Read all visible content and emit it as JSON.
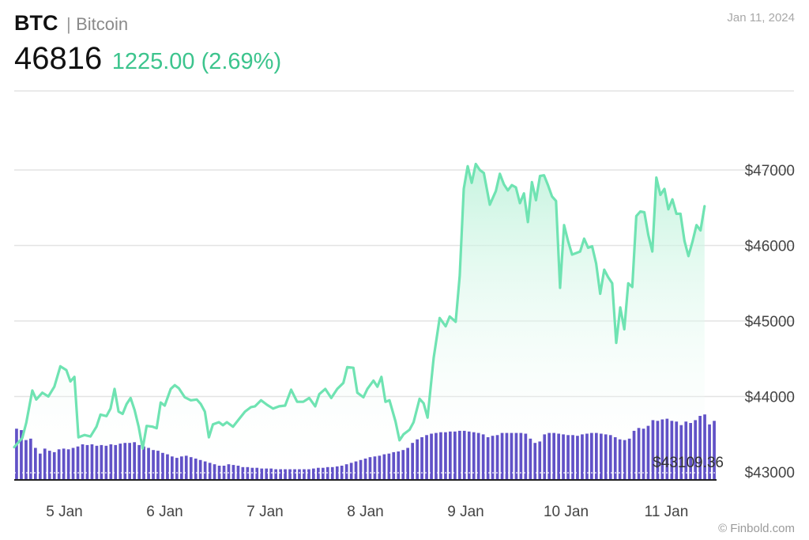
{
  "header": {
    "ticker": "BTC",
    "separator": "|",
    "name": "Bitcoin",
    "price": "46816",
    "change": "1225.00 (2.69%)",
    "date": "Jan 11, 2024"
  },
  "credit": "© Finbold.com",
  "colors": {
    "line": "#6fe3b2",
    "area_top": "#bdf2da",
    "volume": "#6152c7",
    "change": "#3cc48d",
    "grid": "#e3e3e3"
  },
  "chart_data": {
    "type": "line",
    "title": "",
    "xlabel": "",
    "ylabel": "",
    "x_tick_labels": [
      "5 Jan",
      "6 Jan",
      "7 Jan",
      "8 Jan",
      "9 Jan",
      "10 Jan",
      "11 Jan"
    ],
    "x_tick_positions": [
      0.5,
      1.5,
      2.5,
      3.5,
      4.5,
      5.5,
      6.5
    ],
    "x_range": [
      0,
      7
    ],
    "y_tick_labels": [
      "$43000",
      "$44000",
      "$45000",
      "$46000",
      "$47000"
    ],
    "y_tick_values": [
      43000,
      44000,
      45000,
      46000,
      47000
    ],
    "ylim": [
      42900,
      48000
    ],
    "min_label": "$43109.36",
    "min_value": 43109.36,
    "grid": true,
    "price_series": {
      "name": "",
      "points": [
        [
          0.0,
          43330
        ],
        [
          0.08,
          43450
        ],
        [
          0.12,
          43650
        ],
        [
          0.18,
          44080
        ],
        [
          0.22,
          43960
        ],
        [
          0.28,
          44050
        ],
        [
          0.34,
          44000
        ],
        [
          0.4,
          44130
        ],
        [
          0.46,
          44400
        ],
        [
          0.52,
          44350
        ],
        [
          0.56,
          44200
        ],
        [
          0.6,
          44260
        ],
        [
          0.64,
          43460
        ],
        [
          0.7,
          43490
        ],
        [
          0.76,
          43470
        ],
        [
          0.82,
          43600
        ],
        [
          0.86,
          43760
        ],
        [
          0.92,
          43740
        ],
        [
          0.96,
          43840
        ],
        [
          1.0,
          44100
        ],
        [
          1.04,
          43800
        ],
        [
          1.08,
          43770
        ],
        [
          1.12,
          43900
        ],
        [
          1.16,
          43980
        ],
        [
          1.2,
          43820
        ],
        [
          1.24,
          43600
        ],
        [
          1.28,
          43310
        ],
        [
          1.32,
          43610
        ],
        [
          1.38,
          43600
        ],
        [
          1.42,
          43580
        ],
        [
          1.46,
          43920
        ],
        [
          1.5,
          43880
        ],
        [
          1.56,
          44100
        ],
        [
          1.6,
          44150
        ],
        [
          1.64,
          44110
        ],
        [
          1.7,
          43990
        ],
        [
          1.76,
          43950
        ],
        [
          1.82,
          43960
        ],
        [
          1.86,
          43900
        ],
        [
          1.9,
          43800
        ],
        [
          1.94,
          43460
        ],
        [
          1.98,
          43630
        ],
        [
          2.04,
          43660
        ],
        [
          2.08,
          43620
        ],
        [
          2.12,
          43660
        ],
        [
          2.18,
          43600
        ],
        [
          2.24,
          43700
        ],
        [
          2.3,
          43800
        ],
        [
          2.36,
          43860
        ],
        [
          2.4,
          43870
        ],
        [
          2.46,
          43950
        ],
        [
          2.52,
          43890
        ],
        [
          2.58,
          43840
        ],
        [
          2.64,
          43870
        ],
        [
          2.7,
          43880
        ],
        [
          2.76,
          44090
        ],
        [
          2.82,
          43930
        ],
        [
          2.88,
          43930
        ],
        [
          2.94,
          43980
        ],
        [
          3.0,
          43870
        ],
        [
          3.04,
          44030
        ],
        [
          3.1,
          44100
        ],
        [
          3.16,
          43980
        ],
        [
          3.22,
          44100
        ],
        [
          3.28,
          44180
        ],
        [
          3.32,
          44390
        ],
        [
          3.38,
          44380
        ],
        [
          3.42,
          44050
        ],
        [
          3.48,
          43990
        ],
        [
          3.52,
          44100
        ],
        [
          3.58,
          44210
        ],
        [
          3.62,
          44130
        ],
        [
          3.66,
          44260
        ],
        [
          3.7,
          43930
        ],
        [
          3.74,
          43950
        ],
        [
          3.8,
          43670
        ],
        [
          3.84,
          43420
        ],
        [
          3.88,
          43500
        ],
        [
          3.94,
          43560
        ],
        [
          3.98,
          43660
        ],
        [
          4.04,
          43970
        ],
        [
          4.08,
          43910
        ],
        [
          4.12,
          43720
        ],
        [
          4.18,
          44510
        ],
        [
          4.24,
          45040
        ],
        [
          4.3,
          44930
        ],
        [
          4.34,
          45060
        ],
        [
          4.4,
          44990
        ],
        [
          4.44,
          45600
        ],
        [
          4.48,
          46750
        ],
        [
          4.52,
          47050
        ],
        [
          4.56,
          46830
        ],
        [
          4.6,
          47080
        ],
        [
          4.64,
          47000
        ],
        [
          4.68,
          46960
        ],
        [
          4.74,
          46540
        ],
        [
          4.8,
          46720
        ],
        [
          4.84,
          46950
        ],
        [
          4.88,
          46810
        ],
        [
          4.92,
          46730
        ],
        [
          4.96,
          46800
        ],
        [
          5.0,
          46770
        ],
        [
          5.04,
          46560
        ],
        [
          5.08,
          46690
        ],
        [
          5.12,
          46310
        ],
        [
          5.16,
          46840
        ],
        [
          5.2,
          46600
        ],
        [
          5.24,
          46920
        ],
        [
          5.28,
          46930
        ],
        [
          5.32,
          46800
        ],
        [
          5.36,
          46650
        ],
        [
          5.4,
          46590
        ],
        [
          5.44,
          45440
        ],
        [
          5.48,
          46270
        ],
        [
          5.52,
          46060
        ],
        [
          5.56,
          45880
        ],
        [
          5.6,
          45900
        ],
        [
          5.64,
          45920
        ],
        [
          5.68,
          46090
        ],
        [
          5.72,
          45970
        ],
        [
          5.76,
          45990
        ],
        [
          5.8,
          45760
        ],
        [
          5.84,
          45360
        ],
        [
          5.88,
          45680
        ],
        [
          5.92,
          45580
        ],
        [
          5.96,
          45500
        ],
        [
          6.0,
          44710
        ],
        [
          6.04,
          45180
        ],
        [
          6.08,
          44890
        ],
        [
          6.12,
          45500
        ],
        [
          6.16,
          45450
        ],
        [
          6.2,
          46390
        ],
        [
          6.24,
          46450
        ],
        [
          6.28,
          46440
        ],
        [
          6.32,
          46140
        ],
        [
          6.36,
          45920
        ],
        [
          6.4,
          46900
        ],
        [
          6.44,
          46670
        ],
        [
          6.48,
          46750
        ],
        [
          6.52,
          46480
        ],
        [
          6.56,
          46610
        ],
        [
          6.6,
          46420
        ],
        [
          6.64,
          46420
        ],
        [
          6.68,
          46060
        ],
        [
          6.72,
          45860
        ],
        [
          6.76,
          46050
        ],
        [
          6.8,
          46270
        ],
        [
          6.84,
          46200
        ],
        [
          6.88,
          46520
        ]
      ]
    },
    "volume_series": {
      "name": "",
      "values": [
        0.72,
        0.7,
        0.56,
        0.58,
        0.45,
        0.37,
        0.44,
        0.41,
        0.39,
        0.43,
        0.44,
        0.43,
        0.45,
        0.47,
        0.5,
        0.49,
        0.5,
        0.48,
        0.49,
        0.48,
        0.5,
        0.49,
        0.51,
        0.52,
        0.52,
        0.53,
        0.49,
        0.47,
        0.45,
        0.42,
        0.41,
        0.38,
        0.36,
        0.33,
        0.31,
        0.33,
        0.34,
        0.32,
        0.3,
        0.28,
        0.26,
        0.24,
        0.22,
        0.2,
        0.2,
        0.22,
        0.21,
        0.2,
        0.18,
        0.18,
        0.17,
        0.17,
        0.16,
        0.16,
        0.16,
        0.15,
        0.15,
        0.15,
        0.15,
        0.15,
        0.15,
        0.15,
        0.15,
        0.16,
        0.17,
        0.17,
        0.18,
        0.18,
        0.19,
        0.2,
        0.22,
        0.24,
        0.26,
        0.28,
        0.3,
        0.32,
        0.33,
        0.34,
        0.36,
        0.37,
        0.39,
        0.4,
        0.42,
        0.45,
        0.52,
        0.57,
        0.6,
        0.63,
        0.65,
        0.66,
        0.67,
        0.67,
        0.68,
        0.68,
        0.69,
        0.69,
        0.68,
        0.67,
        0.66,
        0.64,
        0.6,
        0.62,
        0.63,
        0.66,
        0.66,
        0.66,
        0.66,
        0.66,
        0.65,
        0.58,
        0.52,
        0.54,
        0.64,
        0.66,
        0.66,
        0.65,
        0.64,
        0.63,
        0.63,
        0.62,
        0.64,
        0.65,
        0.66,
        0.66,
        0.65,
        0.64,
        0.63,
        0.6,
        0.57,
        0.56,
        0.58,
        0.69,
        0.73,
        0.72,
        0.76,
        0.84,
        0.83,
        0.85,
        0.86,
        0.83,
        0.82,
        0.77,
        0.82,
        0.8,
        0.84,
        0.9,
        0.92,
        0.78,
        0.83
      ]
    }
  }
}
